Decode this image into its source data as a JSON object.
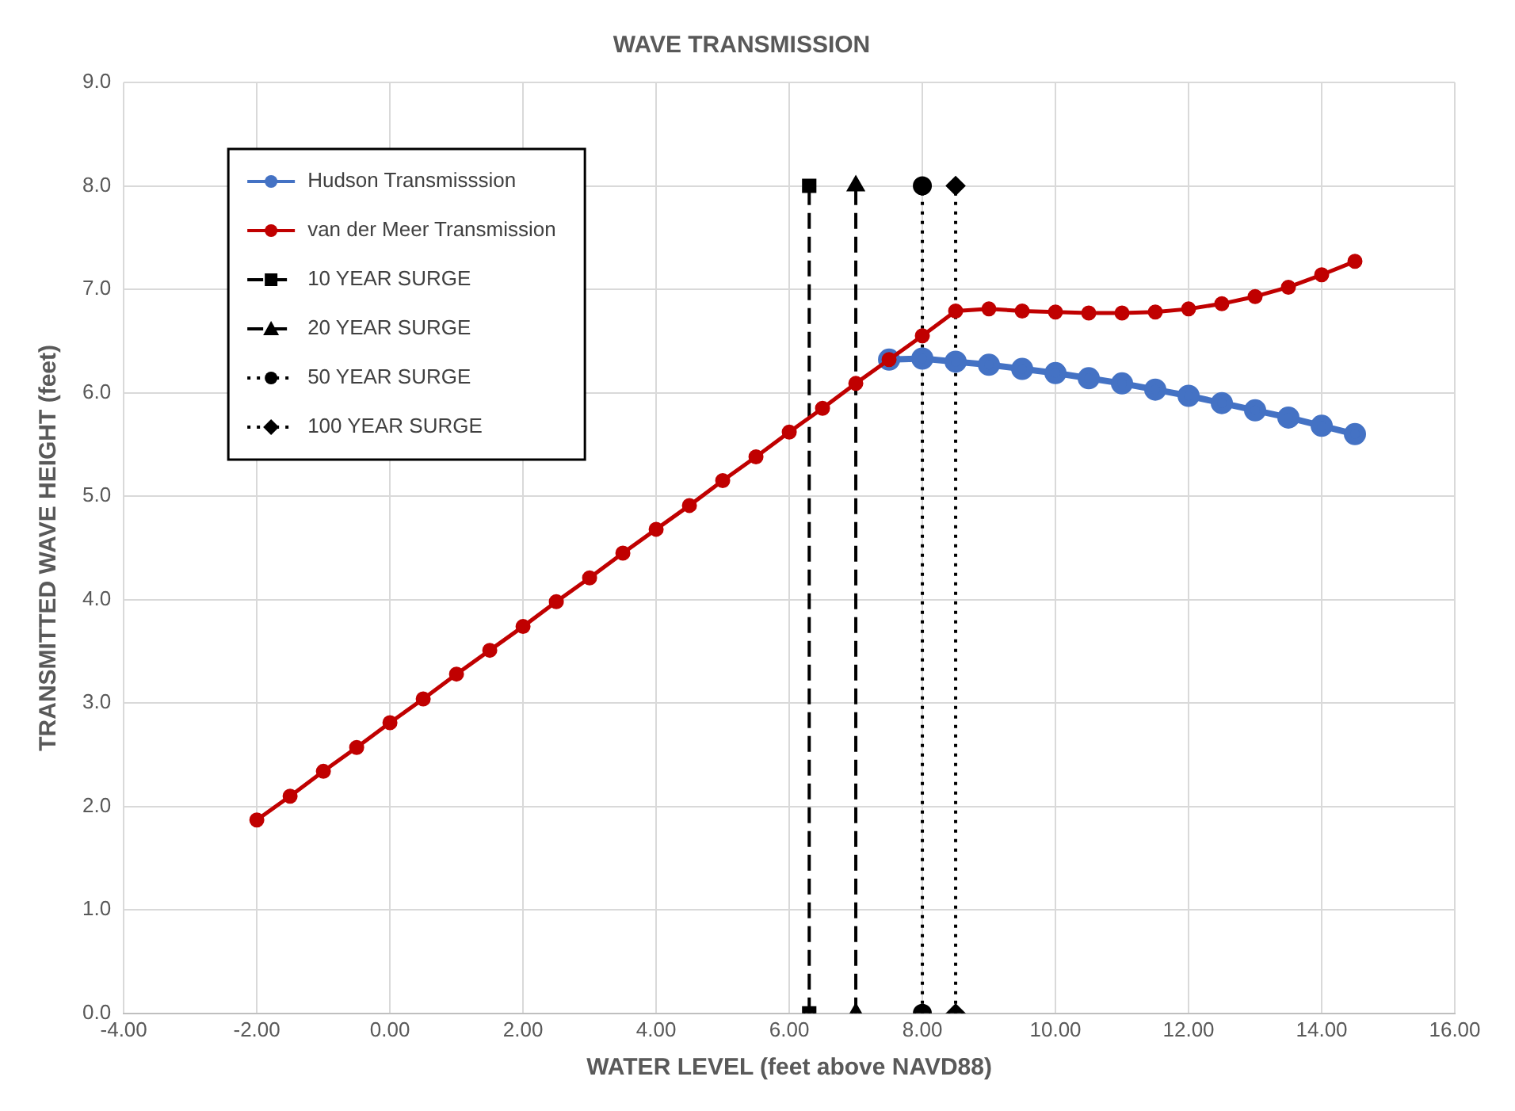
{
  "chart_data": {
    "type": "line",
    "title": "WAVE TRANSMISSION",
    "xlabel": "WATER LEVEL (feet above NAVD88)",
    "ylabel": "TRANSMITTED WAVE HEIGHT (feet)",
    "x": [
      -2,
      -1.5,
      -1,
      -0.5,
      0,
      0.5,
      1,
      1.5,
      2,
      2.5,
      3,
      3.5,
      4,
      4.5,
      5,
      5.5,
      6,
      6.5,
      7,
      7.5,
      8,
      8.5,
      9,
      9.5,
      10,
      10.5,
      11,
      11.5,
      12,
      12.5,
      13,
      13.5,
      14,
      14.5
    ],
    "series": [
      {
        "name": "Hudson Transmisssion",
        "color": "#4472c4",
        "marker": "circle",
        "values": [
          null,
          null,
          null,
          null,
          null,
          null,
          null,
          null,
          null,
          null,
          null,
          null,
          null,
          null,
          null,
          null,
          null,
          null,
          null,
          6.32,
          6.33,
          6.3,
          6.27,
          6.23,
          6.19,
          6.14,
          6.09,
          6.03,
          5.97,
          5.9,
          5.83,
          5.76,
          5.68,
          5.6
        ]
      },
      {
        "name": "van der Meer Transmission",
        "color": "#c00000",
        "marker": "circle",
        "values": [
          1.87,
          2.1,
          2.34,
          2.57,
          2.81,
          3.04,
          3.28,
          3.51,
          3.74,
          3.98,
          4.21,
          4.45,
          4.68,
          4.91,
          5.15,
          5.38,
          5.62,
          5.85,
          6.09,
          6.32,
          6.55,
          6.79,
          6.81,
          6.79,
          6.78,
          6.77,
          6.77,
          6.78,
          6.81,
          6.86,
          6.93,
          7.02,
          7.14,
          7.27
        ]
      },
      {
        "name": "10 YEAR SURGE",
        "color": "#000000",
        "marker": "square",
        "line_style": "dashed",
        "x": [
          6.3,
          6.3
        ],
        "values": [
          0,
          8
        ]
      },
      {
        "name": "20 YEAR SURGE",
        "color": "#000000",
        "marker": "triangle",
        "line_style": "dashed",
        "x": [
          7,
          7
        ],
        "values": [
          0,
          8
        ]
      },
      {
        "name": "50 YEAR SURGE",
        "color": "#000000",
        "marker": "circle",
        "line_style": "dotted",
        "x": [
          8,
          8
        ],
        "values": [
          0,
          8
        ]
      },
      {
        "name": "100 YEAR SURGE",
        "color": "#000000",
        "marker": "diamond",
        "line_style": "dotted",
        "x": [
          8.5,
          8.5
        ],
        "values": [
          0,
          8
        ]
      }
    ],
    "xlim": [
      -4,
      16
    ],
    "xticks": [
      {
        "value": -4,
        "label": "-4.00"
      },
      {
        "value": -2,
        "label": "-2.00"
      },
      {
        "value": 0,
        "label": "0.00"
      },
      {
        "value": 2,
        "label": "2.00"
      },
      {
        "value": 4,
        "label": "4.00"
      },
      {
        "value": 6,
        "label": "6.00"
      },
      {
        "value": 8,
        "label": "8.00"
      },
      {
        "value": 10,
        "label": "10.00"
      },
      {
        "value": 12,
        "label": "12.00"
      },
      {
        "value": 14,
        "label": "14.00"
      },
      {
        "value": 16,
        "label": "16.00"
      }
    ],
    "ylim": [
      0,
      9
    ],
    "yticks": [
      {
        "value": 0,
        "label": "0.0"
      },
      {
        "value": 1,
        "label": "1.0"
      },
      {
        "value": 2,
        "label": "2.0"
      },
      {
        "value": 3,
        "label": "3.0"
      },
      {
        "value": 4,
        "label": "4.0"
      },
      {
        "value": 5,
        "label": "5.0"
      },
      {
        "value": 6,
        "label": "6.0"
      },
      {
        "value": 7,
        "label": "7.0"
      },
      {
        "value": 8,
        "label": "8.0"
      },
      {
        "value": 9,
        "label": "9.0"
      }
    ],
    "grid": true,
    "legend": "top left"
  }
}
